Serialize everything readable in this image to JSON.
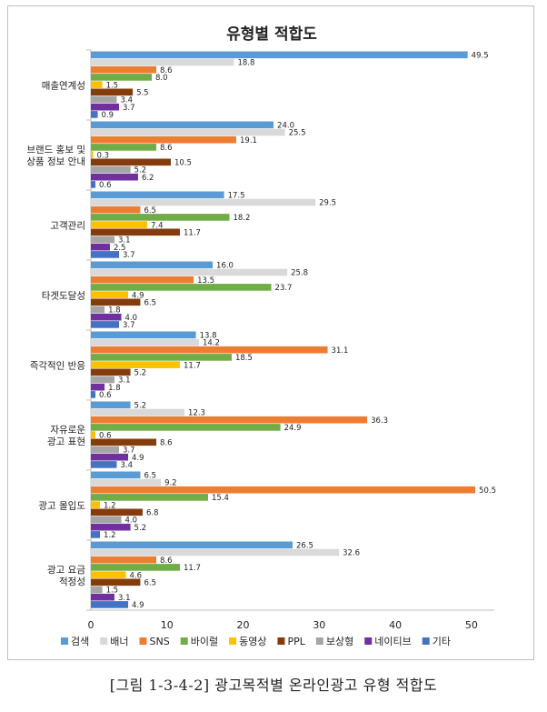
{
  "caption": "[그림 1-3-4-2] 광고목적별 온라인광고 유형 적합도",
  "chart_data": {
    "type": "bar",
    "orientation": "horizontal",
    "title": "유형별 적합도",
    "categories": [
      "매출연계성",
      "브랜드 홍보 및 상품 정보 안내",
      "고객관리",
      "타겟도달성",
      "즉각적인 반응",
      "자유로운 광고 표현",
      "광고 몰입도",
      "광고 요금 적정성"
    ],
    "category_lines": [
      [
        "매출연계성"
      ],
      [
        "브랜드 홍보 및",
        "상품 정보 안내"
      ],
      [
        "고객관리"
      ],
      [
        "타겟도달성"
      ],
      [
        "즉각적인 반응"
      ],
      [
        "자유로운",
        "광고 표현"
      ],
      [
        "광고 몰입도"
      ],
      [
        "광고 요금",
        "적정성"
      ]
    ],
    "series": [
      {
        "name": "검색",
        "color": "#5b9bd5",
        "values": [
          49.5,
          24.0,
          17.5,
          16.0,
          13.8,
          5.2,
          6.5,
          26.5
        ]
      },
      {
        "name": "배너",
        "color": "#d9d9d9",
        "values": [
          18.8,
          25.5,
          29.5,
          25.8,
          14.2,
          12.3,
          9.2,
          32.6
        ]
      },
      {
        "name": "SNS",
        "color": "#ed7d31",
        "values": [
          8.6,
          19.1,
          6.5,
          13.5,
          31.1,
          36.3,
          50.5,
          8.6
        ]
      },
      {
        "name": "바이럴",
        "color": "#70ad47",
        "values": [
          8.0,
          8.6,
          18.2,
          23.7,
          18.5,
          24.9,
          15.4,
          11.7
        ]
      },
      {
        "name": "동영상",
        "color": "#ffc000",
        "values": [
          1.5,
          0.3,
          7.4,
          4.9,
          11.7,
          0.6,
          1.2,
          4.6
        ]
      },
      {
        "name": "PPL",
        "color": "#843c0c",
        "values": [
          5.5,
          10.5,
          11.7,
          6.5,
          5.2,
          8.6,
          6.8,
          6.5
        ]
      },
      {
        "name": "보상형",
        "color": "#a5a5a5",
        "values": [
          3.4,
          5.2,
          3.1,
          1.8,
          3.1,
          3.7,
          4.0,
          1.5
        ]
      },
      {
        "name": "네이티브",
        "color": "#7030a0",
        "values": [
          3.7,
          6.2,
          2.5,
          4.0,
          1.8,
          4.9,
          5.2,
          3.1
        ]
      },
      {
        "name": "기타",
        "color": "#4472c4",
        "values": [
          0.9,
          0.6,
          3.7,
          3.7,
          0.6,
          3.4,
          1.2,
          4.9
        ]
      }
    ],
    "x_ticks": [
      0,
      10,
      20,
      30,
      40,
      50
    ],
    "xlim": [
      0,
      53
    ],
    "grid": false,
    "legend_position": "bottom"
  }
}
